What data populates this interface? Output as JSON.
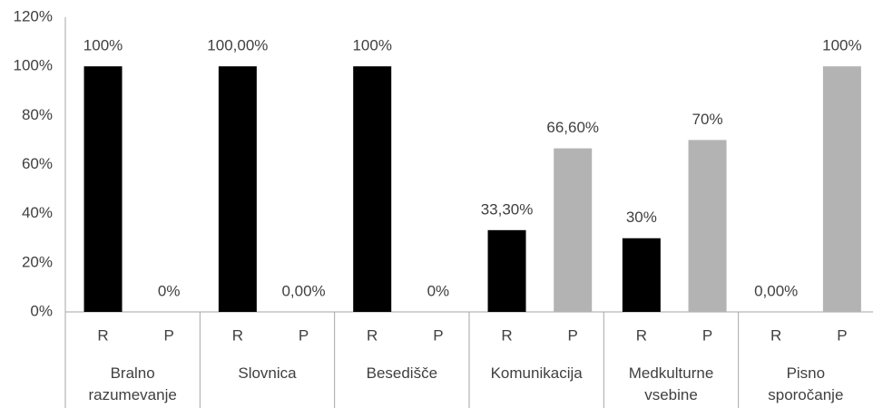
{
  "chart_data": {
    "type": "bar",
    "categories": [
      "Bralno razumevanje",
      "Slovnica",
      "Besedišče",
      "Komunikacija",
      "Medkulturne vsebine",
      "Pisno sporočanje"
    ],
    "subcategories": [
      "R",
      "P"
    ],
    "series": [
      {
        "color": "#000000",
        "values": [
          100,
          100,
          100,
          33.3,
          30,
          0
        ],
        "value_labels": [
          "100%",
          "100,00%",
          "100%",
          "33,30%",
          "30%",
          "0,00%"
        ]
      },
      {
        "color": "#b3b3b3",
        "values": [
          0,
          0,
          0,
          66.6,
          70,
          100
        ],
        "value_labels": [
          "0%",
          "0,00%",
          "0%",
          "66,60%",
          "70%",
          "100%"
        ]
      }
    ],
    "ylim": [
      0,
      120
    ],
    "yticks": [
      {
        "value": 0,
        "label": "0%"
      },
      {
        "value": 20,
        "label": "20%"
      },
      {
        "value": 40,
        "label": "40%"
      },
      {
        "value": 60,
        "label": "60%"
      },
      {
        "value": 80,
        "label": "80%"
      },
      {
        "value": 100,
        "label": "100%"
      },
      {
        "value": 120,
        "label": "120%"
      }
    ],
    "grid": false
  }
}
